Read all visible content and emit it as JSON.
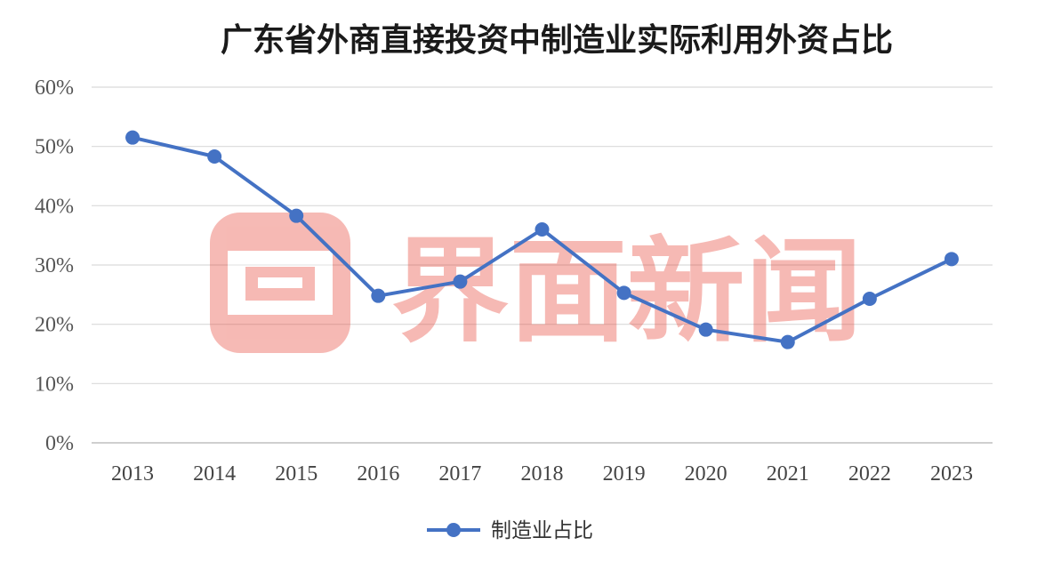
{
  "chart_data": {
    "type": "line",
    "title": "广东省外商直接投资中制造业实际利用外资占比",
    "categories": [
      "2013",
      "2014",
      "2015",
      "2016",
      "2017",
      "2018",
      "2019",
      "2020",
      "2021",
      "2022",
      "2023"
    ],
    "series": [
      {
        "name": "制造业占比",
        "values": [
          51.5,
          48.3,
          38.3,
          24.8,
          27.2,
          36.0,
          25.3,
          19.1,
          17.0,
          24.3,
          31.0
        ]
      }
    ],
    "ylim": [
      0,
      60
    ],
    "yticks": [
      "0%",
      "10%",
      "20%",
      "30%",
      "40%",
      "50%",
      "60%"
    ],
    "grid": true,
    "legend_position": "bottom"
  },
  "watermark": {
    "text": "界面新闻"
  },
  "colors": {
    "line": "#4472c4",
    "grid": "#d9d9d9",
    "watermark": "#e8493c"
  }
}
